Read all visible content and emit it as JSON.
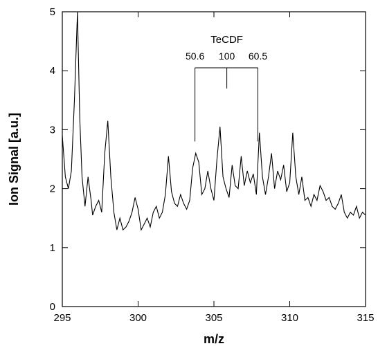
{
  "chart_data": {
    "type": "line",
    "xlabel": "m/z",
    "ylabel": "Ion Signal [a.u.]",
    "xlim": [
      295,
      315
    ],
    "ylim": [
      0,
      5
    ],
    "xticks": [
      295,
      300,
      305,
      310,
      315
    ],
    "yticks": [
      0,
      1,
      2,
      3,
      4,
      5
    ],
    "xtick_labels": [
      "295",
      "300",
      "305",
      "310",
      "315"
    ],
    "ytick_labels": [
      "0",
      "1",
      "2",
      "3",
      "4",
      "5"
    ],
    "grid": false,
    "series": [
      {
        "color": "#000000",
        "x": [
          295.0,
          295.2,
          295.4,
          295.6,
          295.8,
          296.0,
          296.15,
          296.3,
          296.5,
          296.7,
          296.9,
          297.0,
          297.2,
          297.4,
          297.6,
          297.8,
          298.0,
          298.2,
          298.4,
          298.6,
          298.8,
          299.0,
          299.2,
          299.4,
          299.6,
          299.8,
          300.0,
          300.2,
          300.4,
          300.6,
          300.8,
          301.0,
          301.2,
          301.4,
          301.6,
          301.8,
          302.0,
          302.2,
          302.4,
          302.6,
          302.8,
          303.0,
          303.2,
          303.4,
          303.6,
          303.8,
          304.0,
          304.2,
          304.4,
          304.6,
          304.8,
          305.0,
          305.2,
          305.4,
          305.6,
          305.8,
          306.0,
          306.2,
          306.4,
          306.6,
          306.8,
          307.0,
          307.2,
          307.4,
          307.6,
          307.8,
          308.0,
          308.2,
          308.4,
          308.6,
          308.8,
          309.0,
          309.2,
          309.4,
          309.6,
          309.8,
          310.0,
          310.2,
          310.4,
          310.6,
          310.8,
          311.0,
          311.2,
          311.4,
          311.6,
          311.8,
          312.0,
          312.2,
          312.4,
          312.6,
          312.8,
          313.0,
          313.2,
          313.4,
          313.6,
          313.8,
          314.0,
          314.2,
          314.4,
          314.6,
          314.8,
          315.0
        ],
        "y": [
          2.9,
          2.2,
          2.0,
          2.3,
          3.5,
          5.0,
          3.2,
          2.2,
          1.7,
          2.2,
          1.8,
          1.55,
          1.7,
          1.8,
          1.6,
          2.6,
          3.15,
          2.2,
          1.6,
          1.3,
          1.5,
          1.3,
          1.35,
          1.45,
          1.6,
          1.85,
          1.65,
          1.3,
          1.4,
          1.5,
          1.35,
          1.6,
          1.7,
          1.5,
          1.6,
          1.9,
          2.55,
          1.95,
          1.75,
          1.7,
          1.9,
          1.75,
          1.65,
          1.8,
          2.35,
          2.6,
          2.45,
          1.9,
          2.0,
          2.3,
          2.0,
          1.8,
          2.5,
          3.05,
          2.2,
          2.0,
          1.85,
          2.4,
          2.05,
          2.0,
          2.55,
          2.05,
          2.3,
          2.1,
          2.25,
          1.9,
          2.95,
          2.2,
          1.9,
          2.2,
          2.6,
          2.0,
          2.3,
          2.15,
          2.4,
          1.95,
          2.1,
          2.95,
          2.2,
          1.9,
          2.2,
          1.8,
          1.85,
          1.7,
          1.9,
          1.8,
          2.05,
          1.95,
          1.8,
          1.85,
          1.7,
          1.65,
          1.75,
          1.9,
          1.6,
          1.5,
          1.6,
          1.55,
          1.7,
          1.5,
          1.6,
          1.55
        ]
      }
    ],
    "annotations": {
      "title": "TeCDF",
      "peaks": [
        {
          "label": "50.6",
          "x": 303.75,
          "y": 2.8
        },
        {
          "label": "100",
          "x": 305.85,
          "y": 3.7
        },
        {
          "label": "60.5",
          "x": 307.9,
          "y": 2.8
        }
      ],
      "bracket_y": 4.05
    }
  }
}
